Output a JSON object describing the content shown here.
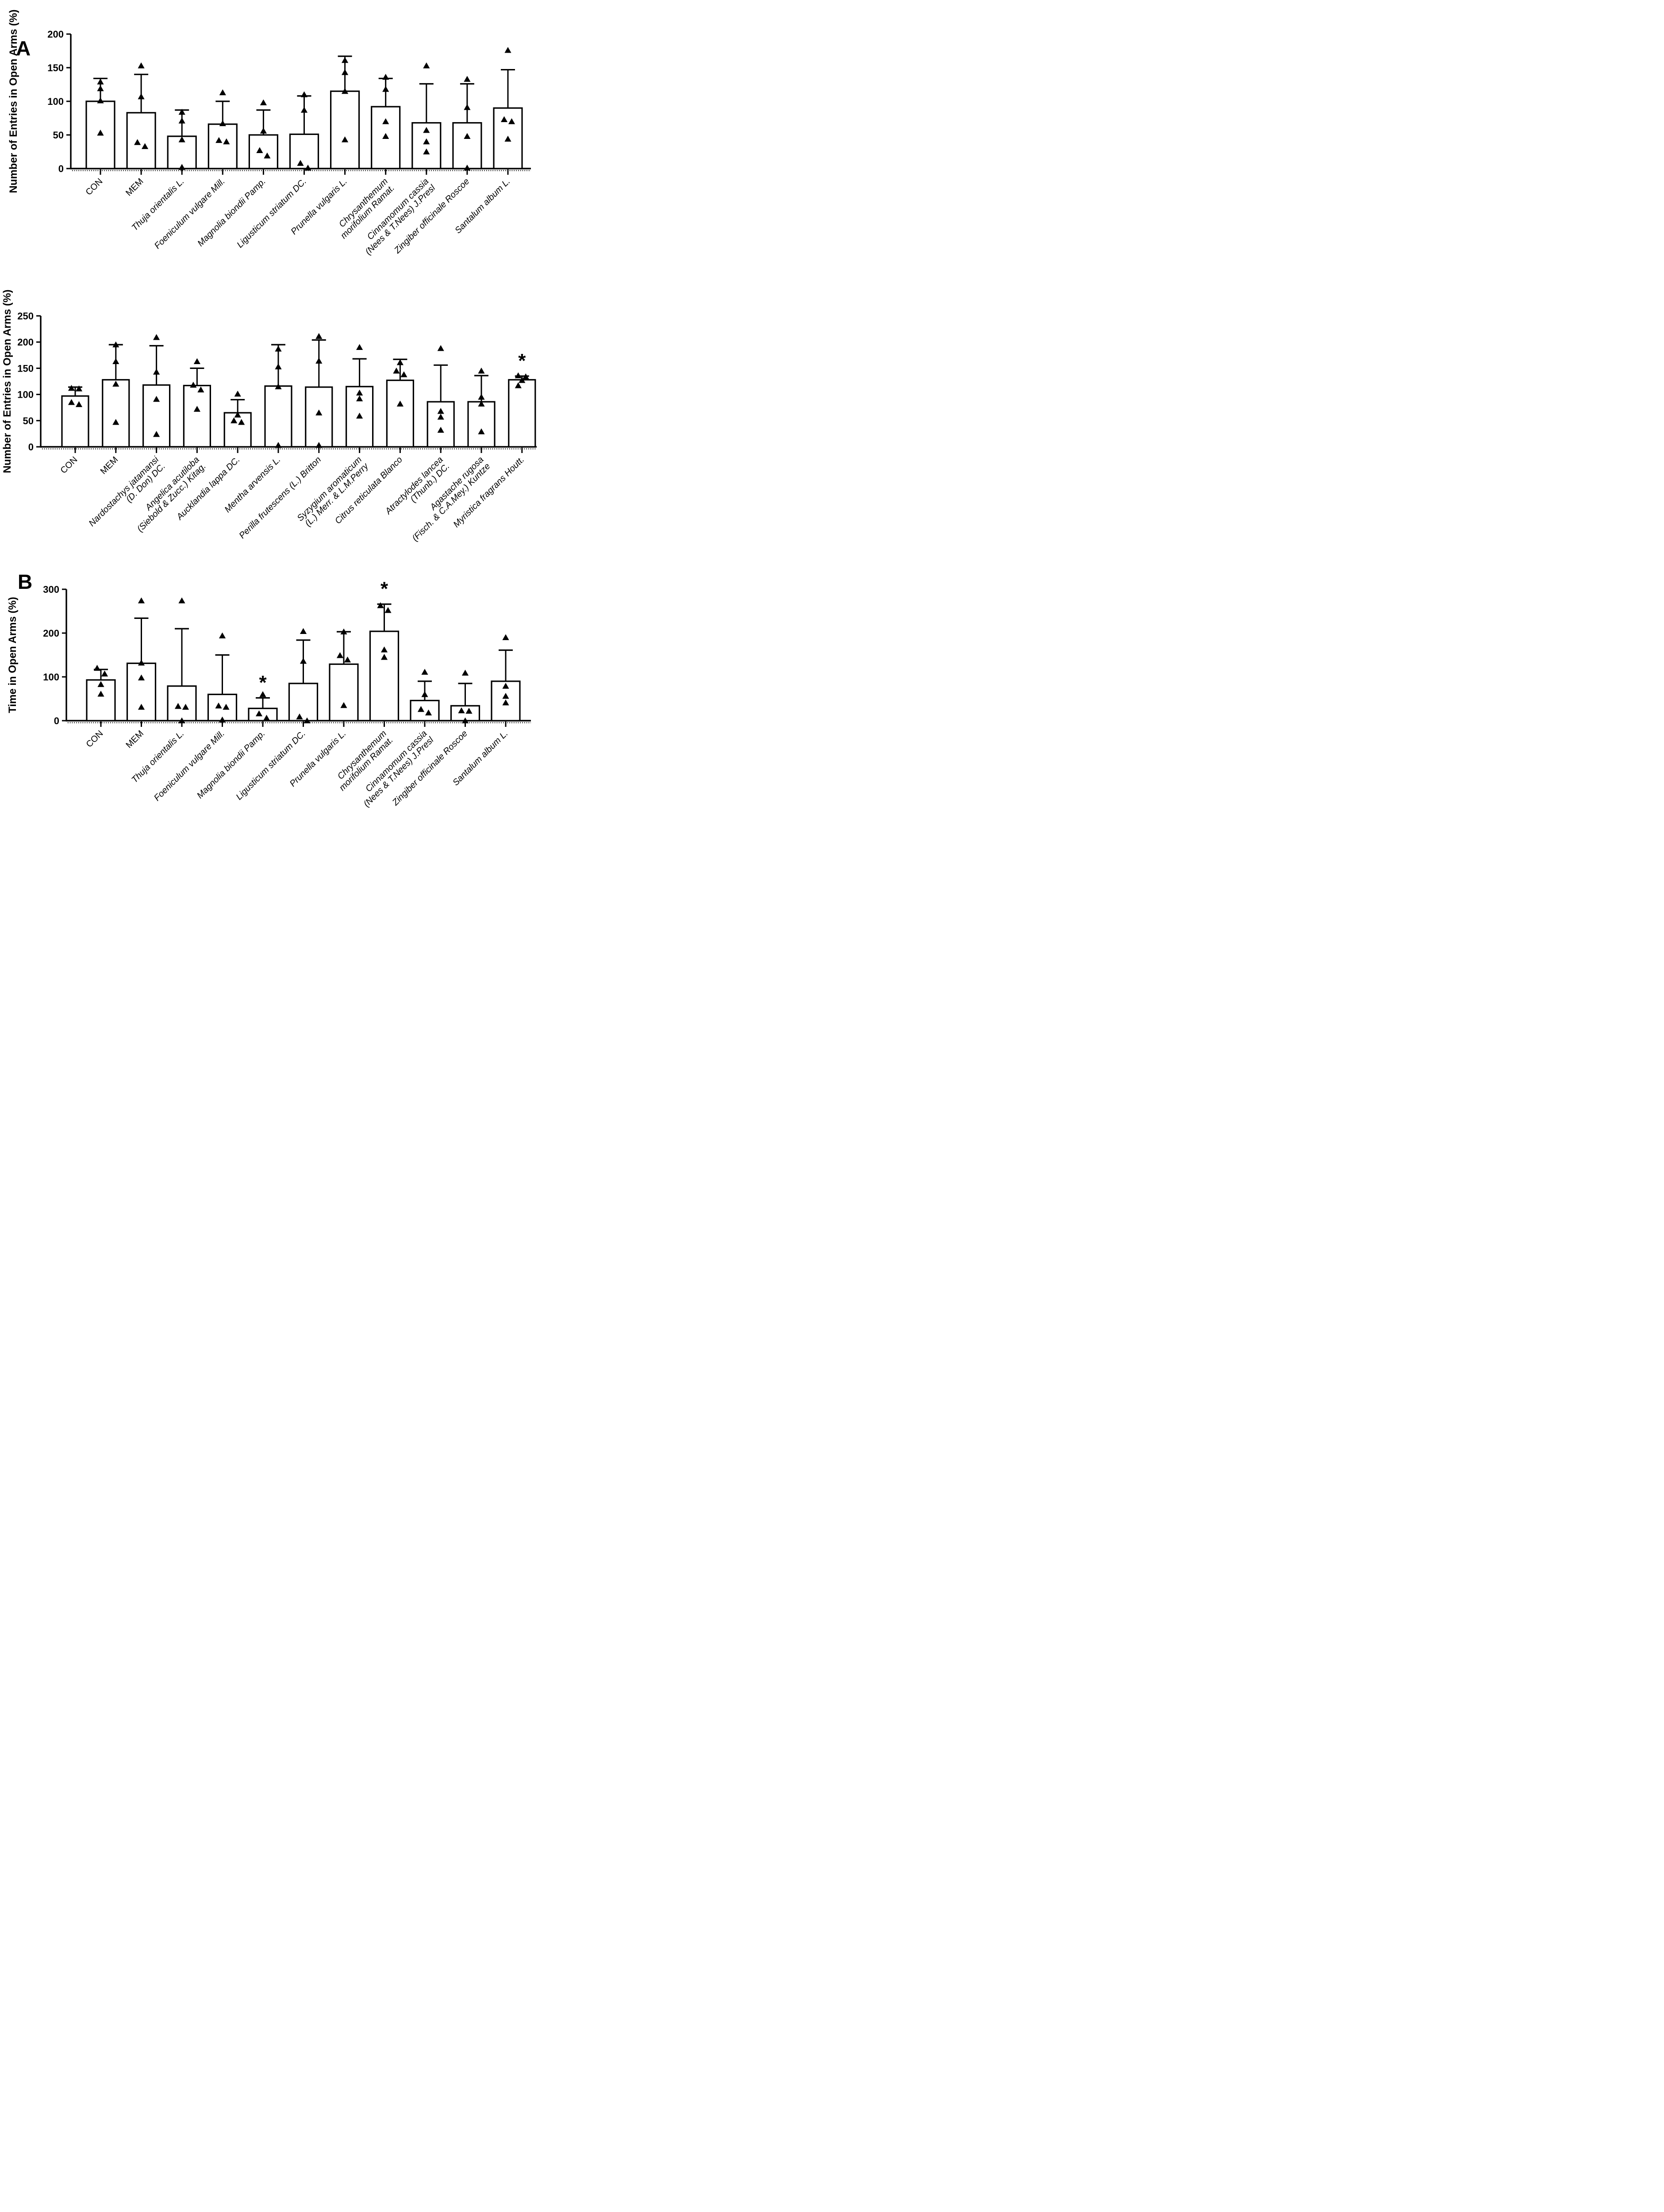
{
  "figure": {
    "panel_a_label": "A",
    "panel_b_label": "B",
    "background_color": "#ffffff",
    "ink_color": "#000000",
    "marker_shape": "filled-triangle-up"
  },
  "chart_data": [
    {
      "id": "panel-a-entries-herbs-set1",
      "panel": "A",
      "type": "bar",
      "title": "",
      "xlabel": "",
      "ylabel": "Number of Entries in Open Arms (%)",
      "ylim": [
        0,
        200
      ],
      "yticks": [
        0,
        50,
        100,
        150,
        200
      ],
      "grid": false,
      "legend": "none",
      "categories": [
        "CON",
        "MEM",
        "Thuja orientalis L.",
        "Foeniculum vulgare Mill.",
        "Magnolia biondii Pamp.",
        "Ligusticum striatum DC.",
        "Prunella vulgaris L.",
        "Chrysanthemum morifolium Ramat.",
        "Cinnamomum cassia (Nees & T.Nees) J.Presl",
        "Zingiber officinale Roscoe",
        "Santalum album L."
      ],
      "bars": [
        {
          "label_lines": [
            "CON"
          ],
          "italic": false,
          "mean": 100,
          "sd_top": 134,
          "points": [
            129,
            119,
            101,
            53
          ],
          "sig": ""
        },
        {
          "label_lines": [
            "MEM"
          ],
          "italic": false,
          "mean": 83,
          "sd_top": 140,
          "points": [
            153,
            107,
            39,
            33
          ],
          "sig": ""
        },
        {
          "label_lines": [
            "Thuja orientalis L."
          ],
          "italic": true,
          "mean": 48,
          "sd_top": 87,
          "points": [
            84,
            71,
            43,
            2
          ],
          "sig": ""
        },
        {
          "label_lines": [
            "Foeniculum vulgare Mill."
          ],
          "italic": true,
          "mean": 66,
          "sd_top": 100,
          "points": [
            113,
            67,
            42,
            40
          ],
          "sig": ""
        },
        {
          "label_lines": [
            "Magnolia biondii Pamp."
          ],
          "italic": true,
          "mean": 50,
          "sd_top": 87,
          "points": [
            98,
            56,
            27,
            19
          ],
          "sig": ""
        },
        {
          "label_lines": [
            "Ligusticum striatum DC."
          ],
          "italic": true,
          "mean": 51,
          "sd_top": 108,
          "points": [
            110,
            87,
            8,
            1
          ],
          "sig": ""
        },
        {
          "label_lines": [
            "Prunella vulgaris L."
          ],
          "italic": true,
          "mean": 115,
          "sd_top": 167,
          "points": [
            161,
            143,
            115,
            43
          ],
          "sig": ""
        },
        {
          "label_lines": [
            "Chrysanthemum",
            "morifolium Ramat."
          ],
          "italic": true,
          "mean": 92,
          "sd_top": 134,
          "points": [
            136,
            118,
            70,
            48
          ],
          "sig": ""
        },
        {
          "label_lines": [
            "Cinnamomum cassia",
            "(Nees & T.Nees) J.Presl"
          ],
          "italic": true,
          "mean": 68,
          "sd_top": 126,
          "points": [
            153,
            57,
            40,
            25
          ],
          "sig": ""
        },
        {
          "label_lines": [
            "Zingiber officinale Roscoe"
          ],
          "italic": true,
          "mean": 68,
          "sd_top": 126,
          "points": [
            133,
            91,
            48,
            1
          ],
          "sig": ""
        },
        {
          "label_lines": [
            "Santalum album L."
          ],
          "italic": true,
          "mean": 90,
          "sd_top": 147,
          "points": [
            176,
            73,
            70,
            44
          ],
          "sig": ""
        }
      ]
    },
    {
      "id": "panel-a-entries-herbs-set2",
      "panel": "A",
      "type": "bar",
      "title": "",
      "xlabel": "",
      "ylabel": "Number of Entries in Open Arms (%)",
      "ylim": [
        0,
        250
      ],
      "yticks": [
        0,
        50,
        100,
        150,
        200,
        250
      ],
      "grid": false,
      "legend": "none",
      "categories": [
        "CON",
        "MEM",
        "Nardostachys jatamansi (D. Don) DC.",
        "Angelica acutiloba (Siebold & Zucc.) Kitag.",
        "Aucklandia lappa DC.",
        "Mentha arvensis L.",
        "Perilla frutescens (L.) Britton",
        "Syzygium aromaticum (L.) Merr. & L.M.Perry",
        "Citrus reticulata Blanco",
        "Atractylodes lancea (Thunb.) DC.",
        "Agastache rugosa (Fisch. & C.A.Mey.) Kuntze",
        "Myristica fragrans Houtt."
      ],
      "bars": [
        {
          "label_lines": [
            "CON"
          ],
          "italic": false,
          "mean": 97,
          "sd_top": 114,
          "points": [
            112,
            111,
            85,
            81
          ],
          "sig": ""
        },
        {
          "label_lines": [
            "MEM"
          ],
          "italic": false,
          "mean": 128,
          "sd_top": 195,
          "points": [
            195,
            163,
            120,
            47
          ],
          "sig": ""
        },
        {
          "label_lines": [
            "Nardostachys jatamansi",
            "(D. Don) DC."
          ],
          "italic": true,
          "mean": 118,
          "sd_top": 193,
          "points": [
            209,
            143,
            91,
            24
          ],
          "sig": ""
        },
        {
          "label_lines": [
            "Angelica acutiloba",
            "(Siebold & Zucc.) Kitag."
          ],
          "italic": true,
          "mean": 117,
          "sd_top": 150,
          "points": [
            163,
            118,
            109,
            72
          ],
          "sig": ""
        },
        {
          "label_lines": [
            "Aucklandia lappa DC."
          ],
          "italic": true,
          "mean": 65,
          "sd_top": 90,
          "points": [
            101,
            61,
            50,
            47
          ],
          "sig": ""
        },
        {
          "label_lines": [
            "Mentha arvensis L."
          ],
          "italic": true,
          "mean": 116,
          "sd_top": 195,
          "points": [
            187,
            153,
            115,
            3
          ],
          "sig": ""
        },
        {
          "label_lines": [
            "Perilla frutescens (L.) Britton"
          ],
          "italic": true,
          "mean": 114,
          "sd_top": 204,
          "points": [
            211,
            164,
            65,
            3
          ],
          "sig": ""
        },
        {
          "label_lines": [
            "Syzygium aromaticum",
            "(L.) Merr. & L.M.Perry"
          ],
          "italic": true,
          "mean": 115,
          "sd_top": 168,
          "points": [
            190,
            103,
            92,
            59
          ],
          "sig": ""
        },
        {
          "label_lines": [
            "Citrus reticulata Blanco"
          ],
          "italic": true,
          "mean": 127,
          "sd_top": 167,
          "points": [
            161,
            145,
            138,
            82
          ],
          "sig": ""
        },
        {
          "label_lines": [
            "Atractylodes lancea",
            "(Thunb.) DC."
          ],
          "italic": true,
          "mean": 86,
          "sd_top": 156,
          "points": [
            188,
            68,
            57,
            32
          ],
          "sig": ""
        },
        {
          "label_lines": [
            "Agastache rugosa",
            "(Fisch. & C.A.Mey.) Kuntze"
          ],
          "italic": true,
          "mean": 86,
          "sd_top": 136,
          "points": [
            145,
            95,
            82,
            29
          ],
          "sig": ""
        },
        {
          "label_lines": [
            "Myristica fragrans Houtt."
          ],
          "italic": true,
          "mean": 128,
          "sd_top": 135,
          "points": [
            136,
            134,
            127,
            117
          ],
          "sig": "*"
        }
      ]
    },
    {
      "id": "panel-b-time-herbs-set1",
      "panel": "B",
      "type": "bar",
      "title": "",
      "xlabel": "",
      "ylabel": "Time in Open Arms (%)",
      "ylim": [
        0,
        300
      ],
      "yticks": [
        0,
        100,
        200,
        300
      ],
      "grid": false,
      "legend": "none",
      "categories": [
        "CON",
        "MEM",
        "Thuja orientalis L.",
        "Foeniculum vulgare Mill.",
        "Magnolia biondii Pamp.",
        "Ligusticum striatum DC.",
        "Prunella vulgaris L.",
        "Chrysanthemum morifolium Ramat.",
        "Cinnamomum cassia (Nees & T.Nees) J.Presl",
        "Zingiber officinale Roscoe",
        "Santalum album L."
      ],
      "bars": [
        {
          "label_lines": [
            "CON"
          ],
          "italic": false,
          "mean": 93,
          "sd_top": 117,
          "points": [
            120,
            107,
            83,
            61
          ],
          "sig": ""
        },
        {
          "label_lines": [
            "MEM"
          ],
          "italic": false,
          "mean": 131,
          "sd_top": 234,
          "points": [
            274,
            132,
            98,
            31
          ],
          "sig": ""
        },
        {
          "label_lines": [
            "Thuja orientalis L."
          ],
          "italic": true,
          "mean": 79,
          "sd_top": 210,
          "points": [
            274,
            33,
            31,
            0
          ],
          "sig": ""
        },
        {
          "label_lines": [
            "Foeniculum vulgare Mill."
          ],
          "italic": true,
          "mean": 60,
          "sd_top": 150,
          "points": [
            194,
            34,
            31,
            2
          ],
          "sig": ""
        },
        {
          "label_lines": [
            "Magnolia biondii Pamp."
          ],
          "italic": true,
          "mean": 28,
          "sd_top": 52,
          "points": [
            60,
            16,
            6
          ],
          "sig": "*"
        },
        {
          "label_lines": [
            "Ligusticum striatum DC."
          ],
          "italic": true,
          "mean": 85,
          "sd_top": 184,
          "points": [
            204,
            136,
            9,
            0
          ],
          "sig": ""
        },
        {
          "label_lines": [
            "Prunella vulgaris L."
          ],
          "italic": true,
          "mean": 129,
          "sd_top": 203,
          "points": [
            203,
            149,
            139,
            35
          ],
          "sig": ""
        },
        {
          "label_lines": [
            "Chrysanthemum",
            "morifolium Ramat."
          ],
          "italic": true,
          "mean": 204,
          "sd_top": 266,
          "points": [
            263,
            252,
            162,
            145
          ],
          "sig": "*"
        },
        {
          "label_lines": [
            "Cinnamomum cassia",
            "(Nees & T.Nees) J.Presl"
          ],
          "italic": true,
          "mean": 46,
          "sd_top": 90,
          "points": [
            111,
            60,
            26,
            18
          ],
          "sig": ""
        },
        {
          "label_lines": [
            "Zingiber officinale Roscoe"
          ],
          "italic": true,
          "mean": 34,
          "sd_top": 85,
          "points": [
            109,
            23,
            22,
            0
          ],
          "sig": ""
        },
        {
          "label_lines": [
            "Santalum album L."
          ],
          "italic": true,
          "mean": 90,
          "sd_top": 161,
          "points": [
            190,
            79,
            56,
            41
          ],
          "sig": ""
        }
      ]
    }
  ]
}
